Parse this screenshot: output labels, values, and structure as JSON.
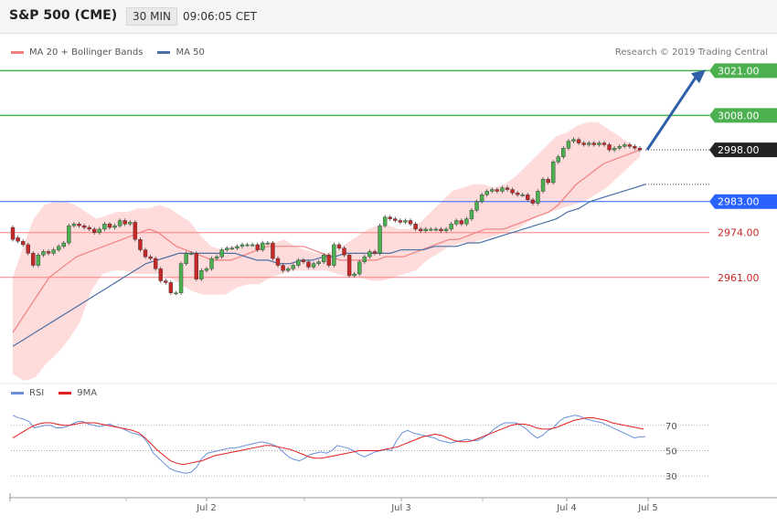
{
  "header": {
    "title": "S&P 500 (CME)",
    "timeframe": "30 MIN",
    "time": "09:06:05 CET"
  },
  "legend": {
    "ma20_label": "MA 20 + Bollinger Bands",
    "ma50_label": "MA 50",
    "copyright": "Research © 2019 Trading Central"
  },
  "rsi_legend": {
    "rsi_label": "RSI",
    "ma_label": "9MA"
  },
  "colors": {
    "bull": "#4caf50",
    "bear": "#c62828",
    "ma20": "#f08080",
    "ma50": "#4a6fa5",
    "band": "#ffd6d6",
    "support": "#ff8080",
    "resistance": "#4caf50",
    "pivot": "#2962ff",
    "current": "#222222",
    "arrow": "#2f5fa8",
    "rsi": "#6a8fd8",
    "rsi_ma": "#e02020"
  },
  "price_levels": [
    {
      "value": 3021.0,
      "label": "3021.00",
      "kind": "resistance"
    },
    {
      "value": 3008.0,
      "label": "3008.00",
      "kind": "resistance"
    },
    {
      "value": 2998.0,
      "label": "2998.00",
      "kind": "current"
    },
    {
      "value": 2983.0,
      "label": "2983.00",
      "kind": "pivot"
    },
    {
      "value": 2974.0,
      "label": "2974.00",
      "kind": "support"
    },
    {
      "value": 2961.0,
      "label": "2961.00",
      "kind": "support"
    }
  ],
  "chart_data": {
    "type": "candlestick",
    "title": "S&P 500 (CME)",
    "timeframe": "30 MIN",
    "x_ticks": [
      "Jul 2",
      "Jul 3",
      "Jul 4",
      "Jul 5"
    ],
    "y_range": [
      2931,
      3024
    ],
    "candles": [
      [
        2975.5,
        2972.0
      ],
      [
        2972.5,
        2971.5
      ],
      [
        2971.5,
        2970.5
      ],
      [
        2970.5,
        2968.0
      ],
      [
        2968.0,
        2964.5
      ],
      [
        2964.5,
        2967.5
      ],
      [
        2967.5,
        2968.5
      ],
      [
        2968.5,
        2968.0
      ],
      [
        2968.0,
        2969.0
      ],
      [
        2969.0,
        2970.0
      ],
      [
        2970.0,
        2971.0
      ],
      [
        2971.0,
        2976.0
      ],
      [
        2976.0,
        2976.5
      ],
      [
        2976.5,
        2976.0
      ],
      [
        2976.0,
        2975.5
      ],
      [
        2975.5,
        2975.0
      ],
      [
        2975.0,
        2974.0
      ],
      [
        2974.0,
        2975.0
      ],
      [
        2975.0,
        2976.5
      ],
      [
        2976.5,
        2975.5
      ],
      [
        2975.5,
        2976.0
      ],
      [
        2976.0,
        2977.5
      ],
      [
        2977.5,
        2976.5
      ],
      [
        2976.5,
        2977.0
      ],
      [
        2977.0,
        2972.0
      ],
      [
        2972.0,
        2969.0
      ],
      [
        2969.0,
        2967.0
      ],
      [
        2967.0,
        2966.5
      ],
      [
        2966.5,
        2963.5
      ],
      [
        2963.5,
        2960.0
      ],
      [
        2960.0,
        2959.5
      ],
      [
        2959.5,
        2956.5
      ],
      [
        2956.5,
        2956.5
      ],
      [
        2956.5,
        2965.0
      ],
      [
        2965.0,
        2968.0
      ],
      [
        2968.0,
        2968.0
      ],
      [
        2968.0,
        2960.5
      ],
      [
        2960.5,
        2963.0
      ],
      [
        2963.0,
        2963.5
      ],
      [
        2963.5,
        2966.5
      ],
      [
        2966.5,
        2967.0
      ],
      [
        2967.0,
        2969.0
      ],
      [
        2969.0,
        2969.5
      ],
      [
        2969.5,
        2969.5
      ],
      [
        2969.5,
        2970.0
      ],
      [
        2970.0,
        2970.5
      ],
      [
        2970.5,
        2970.5
      ],
      [
        2970.5,
        2970.5
      ],
      [
        2970.5,
        2969.0
      ],
      [
        2969.0,
        2971.0
      ],
      [
        2971.0,
        2971.0
      ],
      [
        2971.0,
        2966.5
      ],
      [
        2966.5,
        2964.5
      ],
      [
        2964.5,
        2963.0
      ],
      [
        2963.0,
        2963.5
      ],
      [
        2963.5,
        2964.5
      ],
      [
        2964.5,
        2966.0
      ],
      [
        2966.0,
        2965.5
      ],
      [
        2965.5,
        2964.0
      ],
      [
        2964.0,
        2965.0
      ],
      [
        2965.0,
        2965.5
      ],
      [
        2965.5,
        2967.5
      ],
      [
        2967.5,
        2964.5
      ],
      [
        2964.5,
        2970.5
      ],
      [
        2970.5,
        2969.5
      ],
      [
        2969.5,
        2967.5
      ],
      [
        2967.5,
        2961.5
      ],
      [
        2961.5,
        2962.0
      ],
      [
        2962.0,
        2965.5
      ],
      [
        2965.5,
        2967.0
      ],
      [
        2967.0,
        2968.5
      ],
      [
        2968.5,
        2968.0
      ],
      [
        2968.0,
        2976.0
      ],
      [
        2976.0,
        2978.5
      ],
      [
        2978.5,
        2978.0
      ],
      [
        2978.0,
        2977.5
      ],
      [
        2977.5,
        2977.0
      ],
      [
        2977.0,
        2977.5
      ],
      [
        2977.5,
        2976.5
      ],
      [
        2976.5,
        2975.0
      ],
      [
        2975.0,
        2974.5
      ],
      [
        2974.5,
        2975.0
      ],
      [
        2975.0,
        2975.0
      ],
      [
        2975.0,
        2975.0
      ],
      [
        2975.0,
        2974.5
      ],
      [
        2974.5,
        2975.0
      ],
      [
        2975.0,
        2976.5
      ],
      [
        2976.5,
        2977.5
      ],
      [
        2977.5,
        2976.5
      ],
      [
        2976.5,
        2978.0
      ],
      [
        2978.0,
        2980.5
      ],
      [
        2980.5,
        2983.0
      ],
      [
        2983.0,
        2985.0
      ],
      [
        2985.0,
        2986.0
      ],
      [
        2986.0,
        2986.5
      ],
      [
        2986.5,
        2986.0
      ],
      [
        2986.0,
        2987.0
      ],
      [
        2987.0,
        2986.5
      ],
      [
        2986.5,
        2985.5
      ],
      [
        2985.5,
        2985.0
      ],
      [
        2985.0,
        2985.0
      ],
      [
        2985.0,
        2983.5
      ],
      [
        2983.5,
        2982.5
      ],
      [
        2982.5,
        2986.0
      ],
      [
        2986.0,
        2989.5
      ],
      [
        2989.5,
        2988.5
      ],
      [
        2988.5,
        2994.5
      ],
      [
        2994.5,
        2996.0
      ],
      [
        2996.0,
        2998.5
      ],
      [
        2998.5,
        3000.5
      ],
      [
        3000.5,
        3001.0
      ],
      [
        3001.0,
        3000.0
      ],
      [
        3000.0,
        2999.5
      ],
      [
        2999.5,
        3000.0
      ],
      [
        3000.0,
        2999.5
      ],
      [
        2999.5,
        3000.0
      ],
      [
        3000.0,
        2999.5
      ],
      [
        2999.5,
        2998.0
      ],
      [
        2998.0,
        2998.5
      ],
      [
        2998.5,
        2999.0
      ],
      [
        2999.0,
        2999.5
      ],
      [
        2999.5,
        2999.0
      ],
      [
        2999.0,
        2998.5
      ],
      [
        2998.5,
        2998.0
      ]
    ],
    "ma20": [
      2945,
      2949,
      2953,
      2957,
      2961,
      2963,
      2965,
      2967,
      2968,
      2969,
      2970,
      2971,
      2972,
      2973,
      2974,
      2975,
      2974,
      2972,
      2970,
      2969,
      2968,
      2967,
      2966,
      2966,
      2966,
      2967,
      2968,
      2969,
      2970,
      2970,
      2970,
      2970,
      2970,
      2969,
      2968,
      2967,
      2966,
      2966,
      2966,
      2966,
      2966,
      2967,
      2967,
      2967,
      2968,
      2969,
      2970,
      2971,
      2972,
      2972,
      2973,
      2974,
      2975,
      2975,
      2975,
      2976,
      2977,
      2978,
      2979,
      2980,
      2982,
      2985,
      2988,
      2990,
      2992,
      2994,
      2995,
      2996,
      2997,
      2998
    ],
    "ma50": [
      2941,
      2943,
      2945,
      2947,
      2949,
      2951,
      2953,
      2955,
      2957,
      2959,
      2961,
      2963,
      2965,
      2966,
      2967,
      2968,
      2968,
      2968,
      2968,
      2968,
      2968,
      2967,
      2966,
      2966,
      2965,
      2965,
      2966,
      2966,
      2967,
      2967,
      2968,
      2968,
      2968,
      2968,
      2968,
      2969,
      2969,
      2969,
      2970,
      2970,
      2970,
      2971,
      2971,
      2972,
      2973,
      2974,
      2975,
      2976,
      2977,
      2978,
      2980,
      2981,
      2983,
      2984,
      2985,
      2986,
      2987,
      2988
    ],
    "bb_upper": [
      2961,
      2970,
      2978,
      2982,
      2983,
      2983,
      2982,
      2980,
      2978,
      2979,
      2980,
      2980,
      2981,
      2981,
      2982,
      2981,
      2979,
      2977,
      2973,
      2970,
      2969,
      2970,
      2970,
      2970,
      2971,
      2971,
      2972,
      2970,
      2969,
      2968,
      2968,
      2969,
      2971,
      2973,
      2975,
      2976,
      2976,
      2975,
      2975,
      2977,
      2980,
      2983,
      2986,
      2987,
      2988,
      2988,
      2987,
      2988,
      2990,
      2993,
      2996,
      2999,
      3002,
      3003,
      3005,
      3006,
      3006,
      3004,
      3002,
      3000,
      2998
    ],
    "bb_lower": [
      2933,
      2931,
      2932,
      2936,
      2939,
      2943,
      2948,
      2957,
      2962,
      2963,
      2963,
      2962,
      2962,
      2962,
      2961,
      2959,
      2957,
      2956,
      2956,
      2956,
      2958,
      2959,
      2959,
      2961,
      2962,
      2963,
      2963,
      2963,
      2963,
      2962,
      2961,
      2961,
      2960,
      2960,
      2961,
      2962,
      2963,
      2966,
      2968,
      2970,
      2971,
      2971,
      2972,
      2973,
      2974,
      2975,
      2977,
      2979,
      2980,
      2981,
      2982,
      2983,
      2985,
      2987,
      2990,
      2993,
      2996
    ],
    "rsi": {
      "levels": [
        30,
        50,
        70
      ],
      "values": [
        78,
        76,
        75,
        73,
        68,
        69,
        70,
        70,
        68,
        68,
        69,
        71,
        73,
        73,
        71,
        70,
        69,
        70,
        71,
        69,
        68,
        66,
        64,
        63,
        61,
        56,
        48,
        44,
        40,
        36,
        34,
        33,
        32,
        33,
        37,
        44,
        48,
        49,
        50,
        51,
        52,
        52,
        53,
        54,
        55,
        56,
        57,
        56,
        55,
        53,
        49,
        45,
        43,
        42,
        44,
        47,
        48,
        49,
        48,
        50,
        54,
        53,
        52,
        50,
        47,
        45,
        47,
        49,
        50,
        51,
        50,
        58,
        64,
        66,
        64,
        63,
        62,
        61,
        60,
        58,
        57,
        56,
        57,
        58,
        59,
        58,
        58,
        60,
        63,
        67,
        70,
        72,
        72,
        72,
        70,
        67,
        63,
        60,
        62,
        66,
        68,
        73,
        76,
        77,
        78,
        77,
        75,
        74,
        73,
        72,
        70,
        68,
        66,
        64,
        62,
        60,
        61,
        61
      ],
      "ma": [
        60,
        63,
        66,
        69,
        71,
        72,
        72,
        71,
        70,
        70,
        71,
        72,
        72,
        72,
        71,
        70,
        69,
        68,
        67,
        66,
        64,
        60,
        55,
        50,
        46,
        42,
        40,
        39,
        40,
        41,
        42,
        44,
        46,
        47,
        48,
        49,
        50,
        51,
        52,
        53,
        54,
        54,
        53,
        52,
        51,
        49,
        47,
        45,
        44,
        44,
        45,
        46,
        47,
        48,
        49,
        50,
        50,
        50,
        50,
        51,
        52,
        53,
        55,
        57,
        59,
        61,
        62,
        63,
        62,
        60,
        58,
        57,
        57,
        58,
        60,
        62,
        64,
        66,
        68,
        70,
        71,
        71,
        70,
        68,
        67,
        67,
        68,
        70,
        72,
        74,
        75,
        76,
        76,
        75,
        74,
        72,
        71,
        70,
        69,
        68,
        67
      ]
    }
  }
}
